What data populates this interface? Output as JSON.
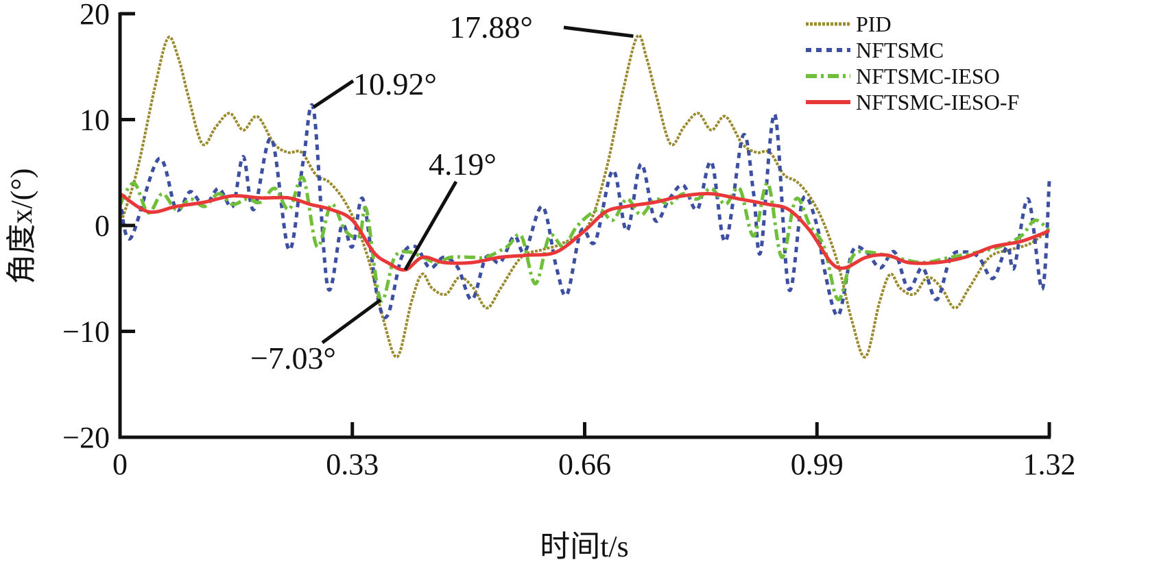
{
  "chart_data": {
    "type": "line",
    "xlabel": "时间t/s",
    "ylabel": "角度x/(°)",
    "xlim": [
      0,
      1.32
    ],
    "ylim": [
      -20,
      20
    ],
    "xticks": [
      "0",
      "0.33",
      "0.66",
      "0.99",
      "1.32"
    ],
    "xtick_values": [
      0,
      0.33,
      0.66,
      0.99,
      1.32
    ],
    "yticks": [
      "20",
      "10",
      "0",
      "−10",
      "−20"
    ],
    "ytick_values": [
      20,
      10,
      0,
      -10,
      -20
    ],
    "grid": false,
    "legend_position": "top-right",
    "series": [
      {
        "name": "PID",
        "color": "#9a8a2e",
        "dash": "dotted-dense",
        "x": [
          0,
          0.024,
          0.049,
          0.068,
          0.083,
          0.097,
          0.117,
          0.136,
          0.156,
          0.175,
          0.195,
          0.219,
          0.239,
          0.258,
          0.278,
          0.297,
          0.317,
          0.336,
          0.356,
          0.375,
          0.394,
          0.414,
          0.429,
          0.443,
          0.463,
          0.482,
          0.502,
          0.521,
          0.541,
          0.57,
          0.599,
          0.628,
          0.665,
          0.69,
          0.715,
          0.735,
          0.748,
          0.762,
          0.782,
          0.801,
          0.821,
          0.84,
          0.86,
          0.884,
          0.904,
          0.923,
          0.943,
          0.962,
          0.982,
          1.001,
          1.021,
          1.04,
          1.059,
          1.079,
          1.094,
          1.108,
          1.128,
          1.147,
          1.167,
          1.186,
          1.206,
          1.235,
          1.264,
          1.293,
          1.32
        ],
        "y": [
          0,
          5.1,
          12.9,
          17.7,
          15.8,
          12.2,
          7.7,
          9.3,
          10.6,
          9.0,
          10.3,
          7.7,
          6.9,
          6.9,
          4.8,
          4.1,
          2.5,
          0,
          -3.9,
          -9.1,
          -12.4,
          -7.2,
          -4.6,
          -5.9,
          -6.5,
          -4.9,
          -5.9,
          -7.8,
          -5.9,
          -3.0,
          -2.3,
          -1.7,
          0,
          5.1,
          12.9,
          17.88,
          15.8,
          12.2,
          7.7,
          9.3,
          10.6,
          9.0,
          10.3,
          7.7,
          6.9,
          6.9,
          4.8,
          4.1,
          2.5,
          0,
          -3.9,
          -9.1,
          -12.4,
          -7.2,
          -4.6,
          -5.9,
          -6.5,
          -4.9,
          -5.9,
          -7.8,
          -5.9,
          -3.0,
          -2.3,
          -1.7,
          -0.4
        ]
      },
      {
        "name": "NFTSMC",
        "color": "#3d4fa0",
        "dash": "dotted",
        "x": [
          0,
          0.015,
          0.055,
          0.08,
          0.1,
          0.12,
          0.14,
          0.16,
          0.175,
          0.19,
          0.215,
          0.24,
          0.26,
          0.275,
          0.295,
          0.315,
          0.33,
          0.345,
          0.365,
          0.38,
          0.4,
          0.42,
          0.44,
          0.46,
          0.48,
          0.5,
          0.52,
          0.54,
          0.56,
          0.575,
          0.6,
          0.62,
          0.635,
          0.655,
          0.675,
          0.7,
          0.72,
          0.74,
          0.76,
          0.78,
          0.8,
          0.82,
          0.84,
          0.86,
          0.885,
          0.9,
          0.91,
          0.93,
          0.95,
          0.97,
          0.99,
          1.0,
          1.02,
          1.04,
          1.06,
          1.08,
          1.1,
          1.12,
          1.14,
          1.16,
          1.18,
          1.2,
          1.22,
          1.24,
          1.26,
          1.27,
          1.29,
          1.31,
          1.32
        ],
        "y": [
          2.5,
          -1.2,
          6.3,
          1.5,
          3.2,
          1.8,
          3.5,
          1.8,
          6.5,
          1.5,
          8.2,
          -2.3,
          6,
          10.92,
          -5.8,
          0,
          -2,
          2.5,
          -6.5,
          -8.5,
          -3,
          -2,
          -4,
          -3,
          -4,
          -7,
          -3,
          -3.5,
          -1,
          -2.5,
          1.8,
          -4,
          -6.5,
          -0.5,
          -1.5,
          5.2,
          -0.5,
          5.8,
          0.5,
          2.5,
          3.8,
          1.5,
          6,
          -1.5,
          8.5,
          3,
          -2.5,
          10.5,
          -6,
          2.5,
          0,
          -4,
          -8.5,
          -2.5,
          -2.5,
          -4,
          -2.5,
          -6,
          -4,
          -7,
          -3,
          -2.5,
          -3,
          -5,
          -2,
          -4,
          2.5,
          -6,
          4.2
        ]
      },
      {
        "name": "NFTSMC-IESO",
        "color": "#6fbf3a",
        "dash": "dash-dot",
        "x": [
          0,
          0.02,
          0.04,
          0.06,
          0.08,
          0.1,
          0.12,
          0.14,
          0.16,
          0.18,
          0.2,
          0.22,
          0.24,
          0.26,
          0.28,
          0.3,
          0.32,
          0.34,
          0.35,
          0.37,
          0.39,
          0.41,
          0.43,
          0.45,
          0.47,
          0.5,
          0.52,
          0.55,
          0.57,
          0.59,
          0.61,
          0.63,
          0.65,
          0.68,
          0.7,
          0.72,
          0.74,
          0.76,
          0.78,
          0.8,
          0.82,
          0.84,
          0.86,
          0.88,
          0.9,
          0.92,
          0.94,
          0.96,
          0.98,
          1.0,
          1.02,
          1.04,
          1.06,
          1.1,
          1.14,
          1.18,
          1.22,
          1.25,
          1.28,
          1.3,
          1.32
        ],
        "y": [
          2,
          4,
          1.2,
          3,
          1.5,
          2.5,
          1.8,
          3,
          2,
          2.5,
          2.2,
          3.5,
          1.5,
          4.5,
          -2,
          2,
          -0.5,
          -1,
          1.5,
          -7.03,
          -3,
          -2.5,
          -3,
          -3.5,
          -3,
          -3,
          -3,
          -2,
          -1,
          -5.5,
          -1,
          -2,
          0,
          1.5,
          0.5,
          2.5,
          1,
          2.5,
          2,
          3,
          2.5,
          3.5,
          2,
          3.5,
          -1,
          4,
          -3,
          2.5,
          0,
          -2,
          -7,
          -3,
          -2.5,
          -3,
          -3.5,
          -3,
          -2.5,
          -2,
          -1,
          0.5,
          -0.5
        ]
      },
      {
        "name": "NFTSMC-IESO-F",
        "color": "#e8383a",
        "dash": "solid",
        "x": [
          0,
          0.04,
          0.08,
          0.12,
          0.16,
          0.2,
          0.24,
          0.27,
          0.3,
          0.33,
          0.36,
          0.38,
          0.405,
          0.43,
          0.46,
          0.5,
          0.54,
          0.58,
          0.62,
          0.66,
          0.69,
          0.72,
          0.76,
          0.8,
          0.84,
          0.88,
          0.92,
          0.95,
          0.98,
          1.01,
          1.03,
          1.06,
          1.09,
          1.12,
          1.16,
          1.2,
          1.24,
          1.28,
          1.32
        ],
        "y": [
          3,
          1.3,
          1.8,
          2.2,
          2.8,
          2.6,
          2.6,
          2.0,
          1.5,
          0.5,
          -2.5,
          -3.5,
          -4.19,
          -3,
          -3.5,
          -3.5,
          -3,
          -2.8,
          -2.5,
          -0.5,
          1.3,
          1.8,
          2.2,
          2.8,
          3,
          2.5,
          2.0,
          1.5,
          -0.5,
          -3.5,
          -4,
          -3,
          -2.8,
          -3.5,
          -3.5,
          -3,
          -2,
          -1.5,
          -0.5
        ]
      }
    ],
    "annotations": [
      {
        "text": "17.88°",
        "x": 0.735,
        "y": 17.88
      },
      {
        "text": "10.92°",
        "x": 0.275,
        "y": 10.92
      },
      {
        "text": "4.19°",
        "x": 0.405,
        "y": -4.19
      },
      {
        "text": "−7.03°",
        "x": 0.37,
        "y": -7.03
      }
    ]
  }
}
